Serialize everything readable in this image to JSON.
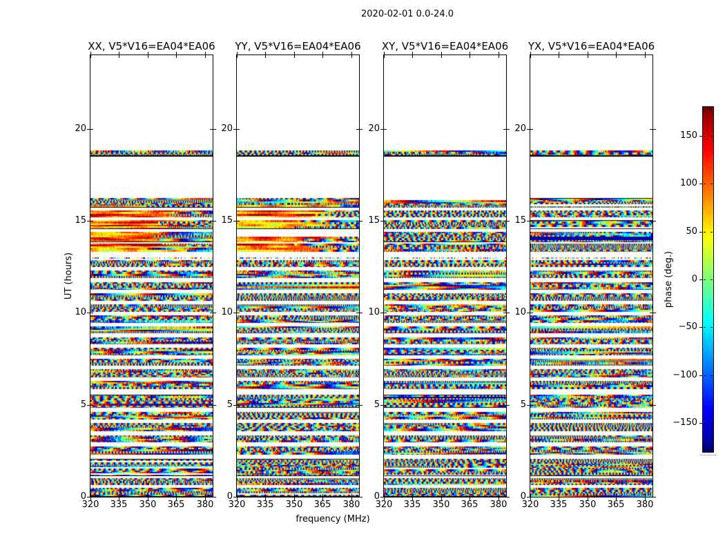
{
  "chart_data": {
    "type": "heatmap",
    "suptitle": "2020-02-01 0.0-24.0",
    "xlabel": "frequency (MHz)",
    "ylabel": "UT (hours)",
    "x_axis": {
      "range_mhz": [
        320,
        384
      ],
      "ticks": [
        320,
        335,
        350,
        365,
        380
      ]
    },
    "y_axis": {
      "range_hours": [
        0,
        24
      ],
      "ticks": [
        0,
        5,
        10,
        15,
        20
      ]
    },
    "colorbar": {
      "label": "phase (deg.)",
      "colormap": "jet",
      "range_deg": [
        -180,
        180
      ],
      "ticks": [
        150,
        100,
        50,
        0,
        -50,
        -100,
        -150
      ]
    },
    "panels": [
      {
        "id": "XX",
        "title": "XX, V5*V16=EA04*EA06"
      },
      {
        "id": "YY",
        "title": "YY, V5*V16=EA04*EA06"
      },
      {
        "id": "XY",
        "title": "XY, V5*V16=EA04*EA06"
      },
      {
        "id": "YX",
        "title": "YX, V5*V16=EA04*EA06"
      }
    ],
    "content": "pseudorandom interferometric fringe phase noise vs frequency (320-384 MHz) and UT hour (0-24), identical time-band coverage in all four panels",
    "time_bands_hours": [
      {
        "start": 0.0,
        "end": 0.5
      },
      {
        "start": 0.62,
        "end": 1.0
      },
      {
        "start": 1.12,
        "end": 2.05
      },
      {
        "start": 2.3,
        "end": 2.75
      },
      {
        "start": 2.95,
        "end": 3.35
      },
      {
        "start": 3.55,
        "end": 4.0
      },
      {
        "start": 4.2,
        "end": 4.62
      },
      {
        "start": 4.82,
        "end": 5.55
      },
      {
        "start": 5.85,
        "end": 6.3
      },
      {
        "start": 6.5,
        "end": 6.92
      },
      {
        "start": 7.12,
        "end": 7.5
      },
      {
        "start": 7.7,
        "end": 8.1
      },
      {
        "start": 8.3,
        "end": 8.68
      },
      {
        "start": 8.88,
        "end": 9.26
      },
      {
        "start": 9.46,
        "end": 9.86
      },
      {
        "start": 10.06,
        "end": 10.46
      },
      {
        "start": 10.66,
        "end": 11.06
      },
      {
        "start": 11.26,
        "end": 11.68
      },
      {
        "start": 11.88,
        "end": 12.3
      },
      {
        "start": 12.5,
        "end": 12.85
      },
      {
        "start": 12.93,
        "end": 13.02,
        "sparse": true
      },
      {
        "start": 13.3,
        "end": 13.75
      },
      {
        "start": 13.85,
        "end": 14.4
      },
      {
        "start": 14.55,
        "end": 15.05
      },
      {
        "start": 15.2,
        "end": 15.55
      },
      {
        "start": 15.7,
        "end": 16.25
      },
      {
        "start": 18.58,
        "end": 18.82,
        "underline": true
      }
    ],
    "hot_regions": [
      {
        "panels": [
          "XX",
          "YY"
        ],
        "hours": [
          13.3,
          15.9
        ],
        "description": "smooth red/orange slowly-varying phase blobs"
      }
    ]
  }
}
